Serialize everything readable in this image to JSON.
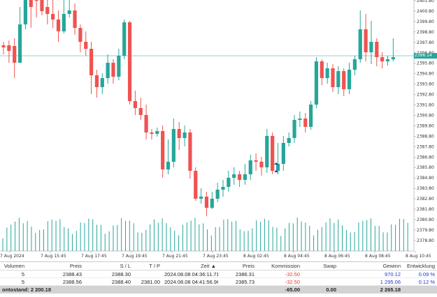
{
  "chart": {
    "price_ticks": [
      "2401.80",
      "2400.80",
      "2399.80",
      "2398.80",
      "2397.80",
      "2396.80",
      "2395.80",
      "2394.80",
      "2393.80",
      "2392.80",
      "2391.80",
      "2390.80",
      "2389.80",
      "2388.80",
      "2387.80",
      "2386.80",
      "2385.80",
      "2384.80",
      "2383.80",
      "2382.80",
      "2381.80",
      "2380.80",
      "2379.80",
      "2378.80"
    ],
    "time_ticks": [
      "7 Aug 2024",
      "7 Aug 15:45",
      "7 Aug 17:45",
      "7 Aug 19:45",
      "7 Aug 21:45",
      "7 Aug 23:45",
      "8 Aug 02:45",
      "8 Aug 04:45",
      "8 Aug 06:45",
      "8 Aug 08:45",
      "8 Aug 10:45"
    ],
    "current_price": "2396.14",
    "colors": {
      "bull": "#26a69a",
      "bear": "#ef5350",
      "volume": "#26a69a",
      "price_line": "#26a69a"
    }
  },
  "positions": {
    "columns": [
      "Volumen",
      "Preis",
      "S / L",
      "T / P",
      "Zeit",
      "Preis",
      "Kommission",
      "Swap",
      "Gewinn",
      "Entwicklung"
    ],
    "sort_indicator": "▲",
    "rows": [
      {
        "volumen": "5",
        "preis": "2388.43",
        "sl": "2388.30",
        "tp": "",
        "zeit": "2024.08.08 04:36:11.712",
        "preis2": "2386.31",
        "kommission": "-32.50",
        "swap": "",
        "gewinn": "970.12",
        "entwicklung": "0.09 %"
      },
      {
        "volumen": "5",
        "preis": "2388.56",
        "sl": "2388.40",
        "tp": "2381.00",
        "zeit": "2024.08.08 04:41:56.963",
        "preis2": "2385.73",
        "kommission": "-32.50",
        "swap": "",
        "gewinn": "1 295.06",
        "entwicklung": "0.12 %"
      }
    ],
    "summary": {
      "label": "ontostand: 2 200.18",
      "kommission": "-65.00",
      "swap": "0.00",
      "gewinn": "2 265.18"
    }
  }
}
